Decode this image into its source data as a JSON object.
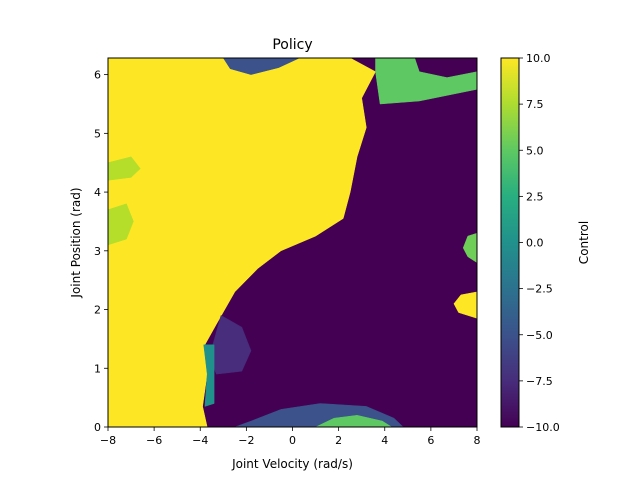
{
  "chart_data": {
    "type": "heatmap",
    "title": "Policy",
    "xlabel": "Joint Velocity (rad/s)",
    "ylabel": "Joint Position (rad)",
    "xlim": [
      -8,
      8
    ],
    "ylim": [
      0,
      6.283
    ],
    "x_ticks": [
      -8,
      -6,
      -4,
      -2,
      0,
      2,
      4,
      6,
      8
    ],
    "x_tick_labels": [
      "−8",
      "−6",
      "−4",
      "−2",
      "0",
      "2",
      "4",
      "6",
      "8"
    ],
    "y_ticks": [
      0,
      1,
      2,
      3,
      4,
      5,
      6
    ],
    "y_tick_labels": [
      "0",
      "1",
      "2",
      "3",
      "4",
      "5",
      "6"
    ],
    "colorbar": {
      "label": "Control",
      "range": [
        -10,
        10
      ],
      "ticks": [
        10,
        7.5,
        5,
        2.5,
        0,
        -2.5,
        -5,
        -7.5,
        -10
      ],
      "tick_labels": [
        "10.0",
        "7.5",
        "5.0",
        "2.5",
        "0.0",
        "−2.5",
        "−5.0",
        "−7.5",
        "−10.0"
      ],
      "colormap": "viridis"
    },
    "grid": false,
    "regions": [
      {
        "name": "max-positive-control",
        "value": 10,
        "color": "#fde725",
        "outline": [
          [
            -8,
            0
          ],
          [
            -3.7,
            0
          ],
          [
            -3.9,
            0.35
          ],
          [
            -3.7,
            0.9
          ],
          [
            -3.8,
            1.4
          ],
          [
            -3.3,
            1.75
          ],
          [
            -2.5,
            2.3
          ],
          [
            -1.5,
            2.7
          ],
          [
            -0.5,
            3.0
          ],
          [
            1,
            3.25
          ],
          [
            2.2,
            3.55
          ],
          [
            2.5,
            4
          ],
          [
            2.8,
            4.6
          ],
          [
            3.2,
            5.1
          ],
          [
            3,
            5.6
          ],
          [
            3.6,
            6.05
          ],
          [
            2.5,
            6.283
          ],
          [
            -8,
            6.283
          ]
        ]
      },
      {
        "name": "max-negative-control",
        "value": -10,
        "color": "#440154",
        "outline": [
          [
            -3.5,
            0.8
          ],
          [
            -3,
            0.4
          ],
          [
            -2.4,
            0.1
          ],
          [
            -2,
            0.05
          ],
          [
            4.8,
            0
          ],
          [
            8,
            0
          ],
          [
            8,
            5.75
          ],
          [
            5.5,
            5.55
          ],
          [
            3.8,
            5.5
          ],
          [
            3.4,
            4.9
          ],
          [
            3.1,
            4.3
          ],
          [
            2.5,
            3.6
          ],
          [
            1,
            3.2
          ],
          [
            -0.3,
            2.85
          ],
          [
            -1.2,
            2.6
          ],
          [
            -2.2,
            2.2
          ],
          [
            -3.2,
            1.6
          ],
          [
            -3.6,
            1.2
          ]
        ]
      },
      {
        "name": "upper-right-negative-patch",
        "value": -10,
        "color": "#440154",
        "outline": [
          [
            5.3,
            6.283
          ],
          [
            8,
            6.283
          ],
          [
            8,
            6.05
          ],
          [
            6.7,
            5.95
          ],
          [
            5.5,
            6.05
          ]
        ]
      },
      {
        "name": "upper-right-positive-band",
        "value": 6,
        "color": "#5ec962",
        "outline": [
          [
            3.6,
            6.283
          ],
          [
            5.3,
            6.283
          ],
          [
            5.5,
            6.05
          ],
          [
            6.7,
            5.95
          ],
          [
            8,
            6.05
          ],
          [
            8,
            5.75
          ],
          [
            5.5,
            5.55
          ],
          [
            3.8,
            5.5
          ],
          [
            3.6,
            6.05
          ]
        ]
      },
      {
        "name": "top-center-negative-patch",
        "value": -6,
        "color": "#3b528b",
        "outline": [
          [
            -3,
            6.283
          ],
          [
            0.3,
            6.283
          ],
          [
            -0.6,
            6.12
          ],
          [
            -1.8,
            6.0
          ],
          [
            -2.7,
            6.1
          ]
        ]
      },
      {
        "name": "left-edge-positive-patch-upper",
        "value": 8,
        "color": "#b5de2b",
        "outline": [
          [
            -8,
            4.2
          ],
          [
            -7,
            4.25
          ],
          [
            -6.6,
            4.4
          ],
          [
            -7,
            4.6
          ],
          [
            -8,
            4.5
          ]
        ]
      },
      {
        "name": "left-edge-positive-patch-lower",
        "value": 8,
        "color": "#b5de2b",
        "outline": [
          [
            -8,
            3.1
          ],
          [
            -7.2,
            3.2
          ],
          [
            -6.9,
            3.5
          ],
          [
            -7.2,
            3.8
          ],
          [
            -8,
            3.7
          ]
        ]
      },
      {
        "name": "right-edge-positive-patch-upper",
        "value": 6,
        "color": "#6ece58",
        "outline": [
          [
            8,
            2.8
          ],
          [
            7.6,
            2.9
          ],
          [
            7.4,
            3.05
          ],
          [
            7.6,
            3.25
          ],
          [
            8,
            3.3
          ]
        ]
      },
      {
        "name": "right-edge-positive-patch-lower",
        "value": 10,
        "color": "#fde725",
        "outline": [
          [
            8,
            1.85
          ],
          [
            7.2,
            1.95
          ],
          [
            7,
            2.1
          ],
          [
            7.3,
            2.25
          ],
          [
            8,
            2.3
          ]
        ]
      },
      {
        "name": "left-boundary-negative-sliver",
        "value": -7,
        "color": "#472d7b",
        "outline": [
          [
            -3.3,
            0.9
          ],
          [
            -2.2,
            0.95
          ],
          [
            -1.8,
            1.3
          ],
          [
            -2.2,
            1.7
          ],
          [
            -3.1,
            1.9
          ],
          [
            -3.6,
            1.2
          ]
        ]
      },
      {
        "name": "left-boundary-teal-strip",
        "value": 1,
        "color": "#21918c",
        "outline": [
          [
            -3.8,
            0.35
          ],
          [
            -3.4,
            0.4
          ],
          [
            -3.4,
            1.4
          ],
          [
            -3.85,
            1.4
          ],
          [
            -3.7,
            0.9
          ]
        ]
      },
      {
        "name": "bottom-center-negative-patch",
        "value": -6,
        "color": "#3b528b",
        "outline": [
          [
            -2.5,
            0
          ],
          [
            4.8,
            0
          ],
          [
            4.4,
            0.15
          ],
          [
            3.2,
            0.35
          ],
          [
            1.2,
            0.4
          ],
          [
            -0.5,
            0.3
          ],
          [
            -1.8,
            0.1
          ]
        ]
      },
      {
        "name": "bottom-center-positive-patch",
        "value": 5,
        "color": "#5ec962",
        "outline": [
          [
            1,
            0
          ],
          [
            4.3,
            0
          ],
          [
            3.9,
            0.1
          ],
          [
            2.8,
            0.2
          ],
          [
            1.8,
            0.15
          ]
        ]
      }
    ]
  }
}
